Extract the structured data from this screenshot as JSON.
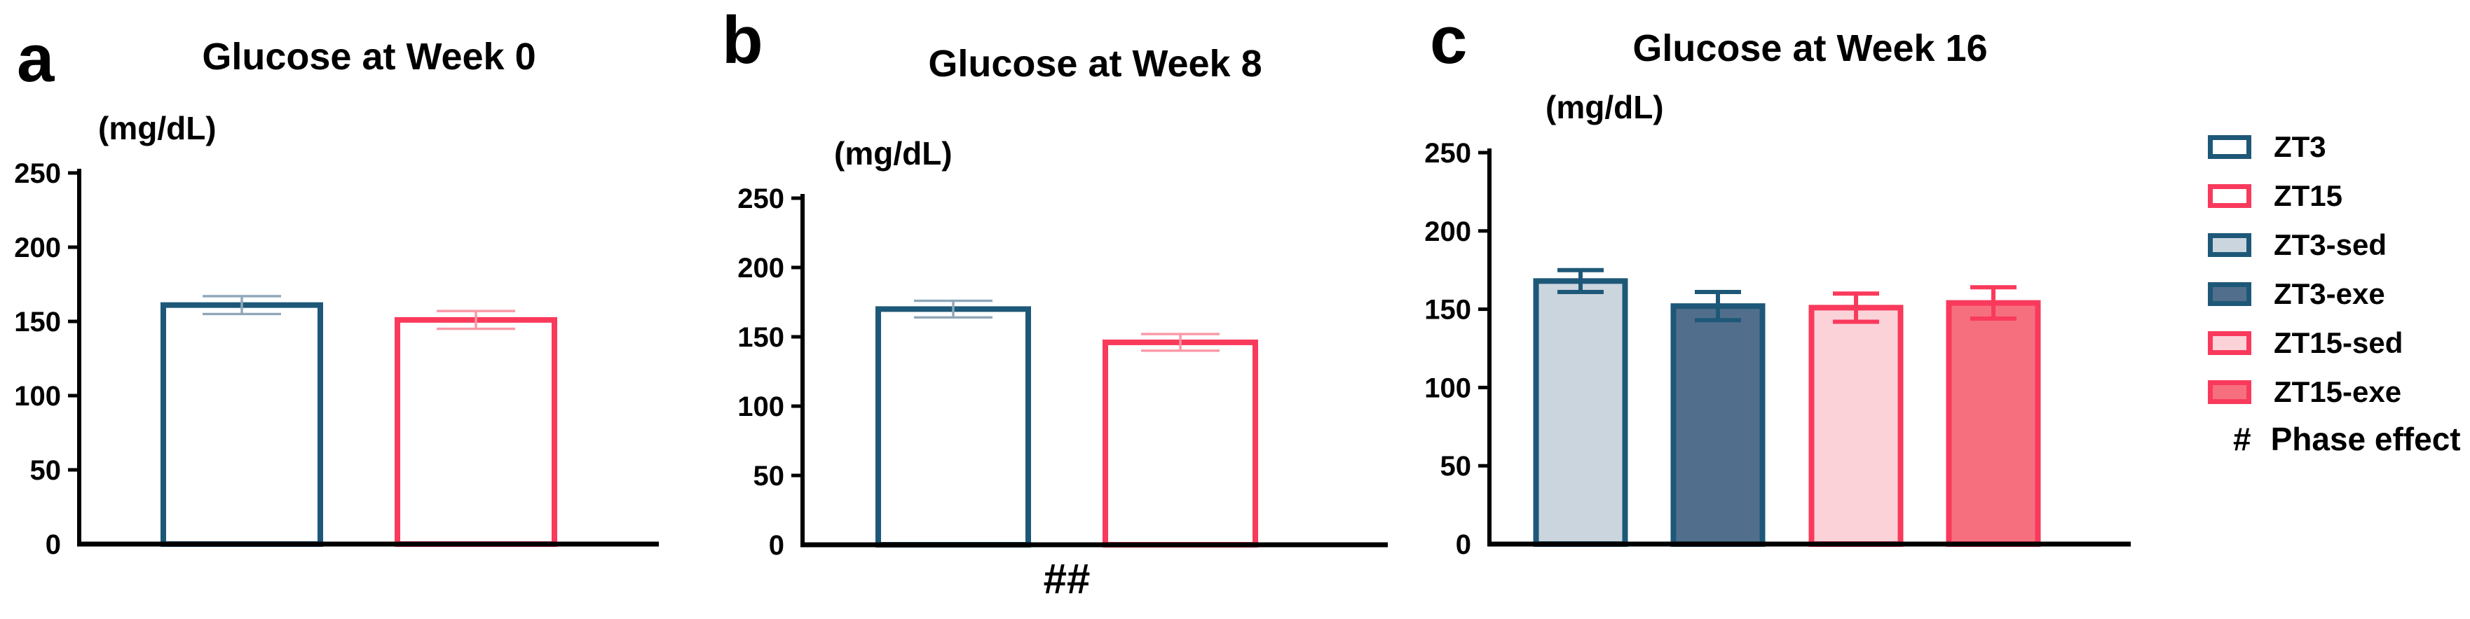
{
  "figure": {
    "background": "#FFFFFF"
  },
  "colors": {
    "zt3_stroke": "#1E5878",
    "zt15_stroke": "#F93A5C",
    "zt3_sed_fill": "#CBD5DE",
    "zt3_exe_fill": "#516F8C",
    "zt15_sed_fill": "#FCD2D9",
    "zt15_exe_fill": "#F66F7F",
    "error_blue_light": "#8FA7B9",
    "error_red_light": "#FB97A5",
    "axis": "#000000"
  },
  "panels": [
    {
      "letter": "a"
    },
    {
      "letter": "b"
    },
    {
      "letter": "c"
    }
  ],
  "chart_data": [
    {
      "type": "bar",
      "title": "Glucose at Week 0",
      "ylabel": "(mg/dL)",
      "ylim": [
        0,
        250
      ],
      "yticks": [
        250,
        200,
        150,
        100,
        50,
        0
      ],
      "categories": [
        "ZT3",
        "ZT15"
      ],
      "series": [
        {
          "name": "ZT3",
          "value": 161,
          "error": 6,
          "fill": "#FFFFFF",
          "stroke": "#1E5878",
          "err_color": "#8FA7B9"
        },
        {
          "name": "ZT15",
          "value": 151,
          "error": 6,
          "fill": "#FFFFFF",
          "stroke": "#F93A5C",
          "err_color": "#FB97A5"
        }
      ],
      "annotation": "",
      "grid": false,
      "legend_position": "none"
    },
    {
      "type": "bar",
      "title": "Glucose at Week 8",
      "ylabel": "(mg/dL)",
      "ylim": [
        0,
        250
      ],
      "yticks": [
        250,
        200,
        150,
        100,
        50,
        0
      ],
      "categories": [
        "ZT3",
        "ZT15"
      ],
      "series": [
        {
          "name": "ZT3",
          "value": 170,
          "error": 6,
          "fill": "#FFFFFF",
          "stroke": "#1E5878",
          "err_color": "#8FA7B9"
        },
        {
          "name": "ZT15",
          "value": 146,
          "error": 6,
          "fill": "#FFFFFF",
          "stroke": "#F93A5C",
          "err_color": "#FB97A5"
        }
      ],
      "annotation": "##",
      "grid": false,
      "legend_position": "none"
    },
    {
      "type": "bar",
      "title": "Glucose at Week 16",
      "ylabel": "(mg/dL)",
      "ylim": [
        0,
        250
      ],
      "yticks": [
        250,
        200,
        150,
        100,
        50,
        0
      ],
      "categories": [
        "ZT3-sed",
        "ZT3-exe",
        "ZT15-sed",
        "ZT15-exe"
      ],
      "series": [
        {
          "name": "ZT3-sed",
          "value": 168,
          "error": 7,
          "fill": "#CBD5DE",
          "stroke": "#1E5878",
          "err_color": "#1E5878"
        },
        {
          "name": "ZT3-exe",
          "value": 152,
          "error": 9,
          "fill": "#516F8C",
          "stroke": "#1E5878",
          "err_color": "#1E5878"
        },
        {
          "name": "ZT15-sed",
          "value": 151,
          "error": 9,
          "fill": "#FCD2D9",
          "stroke": "#F93A5C",
          "err_color": "#F93A5C"
        },
        {
          "name": "ZT15-exe",
          "value": 154,
          "error": 10,
          "fill": "#F66F7F",
          "stroke": "#F93A5C",
          "err_color": "#F93A5C"
        }
      ],
      "annotation": "",
      "grid": false,
      "legend_position": "right-of-figure"
    }
  ],
  "legend": {
    "items": [
      {
        "label": "ZT3",
        "fill": "#FFFFFF",
        "stroke": "#1E5878"
      },
      {
        "label": "ZT15",
        "fill": "#FFFFFF",
        "stroke": "#F93A5C"
      },
      {
        "label": "ZT3-sed",
        "fill": "#CBD5DE",
        "stroke": "#1E5878"
      },
      {
        "label": "ZT3-exe",
        "fill": "#516F8C",
        "stroke": "#1E5878"
      },
      {
        "label": "ZT15-sed",
        "fill": "#FCD2D9",
        "stroke": "#F93A5C"
      },
      {
        "label": "ZT15-exe",
        "fill": "#F66F7F",
        "stroke": "#F93A5C"
      }
    ],
    "note_symbol": "#",
    "note_text": "Phase effect"
  }
}
